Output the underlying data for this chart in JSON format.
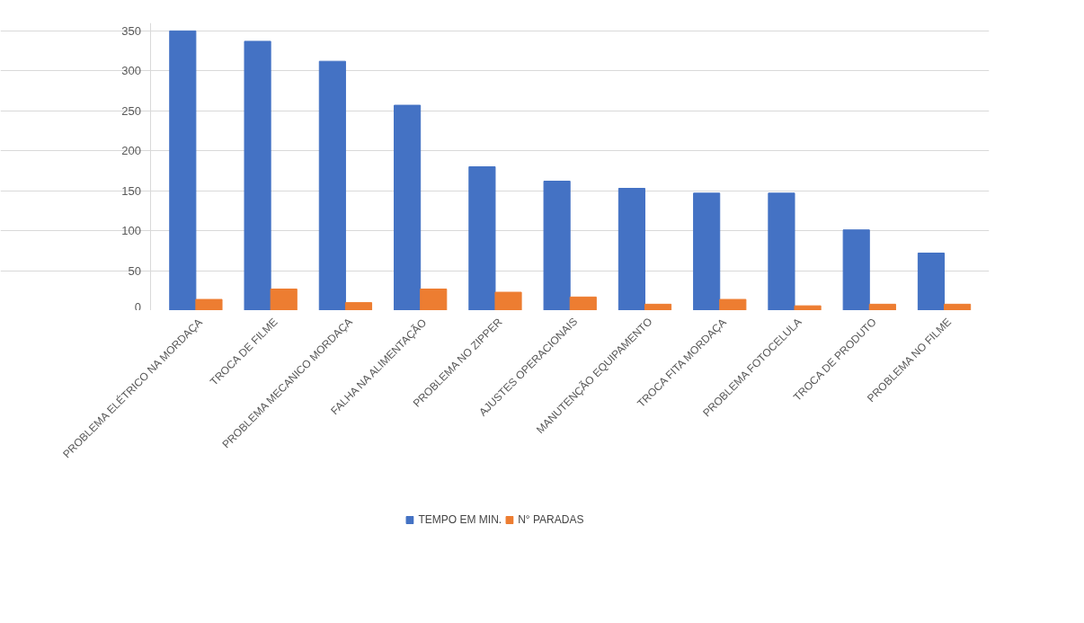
{
  "chart_data": {
    "type": "bar",
    "categories": [
      "PROBLEMA ELÉTRICO NA MORDAÇA",
      "TROCA DE FILME",
      "PROBLEMA MECANICO MORDAÇA",
      "FALHA NA ALIMENTAÇÃO",
      "PROBLEMA NO ZIPPER",
      "AJUSTES OPERACIONAIS",
      "MANUTENÇÃO EQUIPAMENTO",
      "TROCA FITA MORDAÇA",
      "PROBLEMA FOTOCELULA",
      "TROCA DE PRODUTO",
      "PROBLEMA NO FILME"
    ],
    "series": [
      {
        "name": "TEMPO EM MIN.",
        "color": "#4472c4",
        "values": [
          350,
          337,
          312,
          257,
          180,
          162,
          153,
          147,
          147,
          101,
          72
        ]
      },
      {
        "name": "N° PARADAS",
        "color": "#ed7d31",
        "values": [
          14,
          27,
          10,
          27,
          23,
          17,
          8,
          14,
          6,
          8,
          8
        ]
      }
    ],
    "ylim": [
      0,
      360
    ],
    "yticks": [
      0,
      50,
      100,
      150,
      200,
      250,
      300,
      350
    ],
    "grid": "y",
    "legend": "bottom"
  }
}
